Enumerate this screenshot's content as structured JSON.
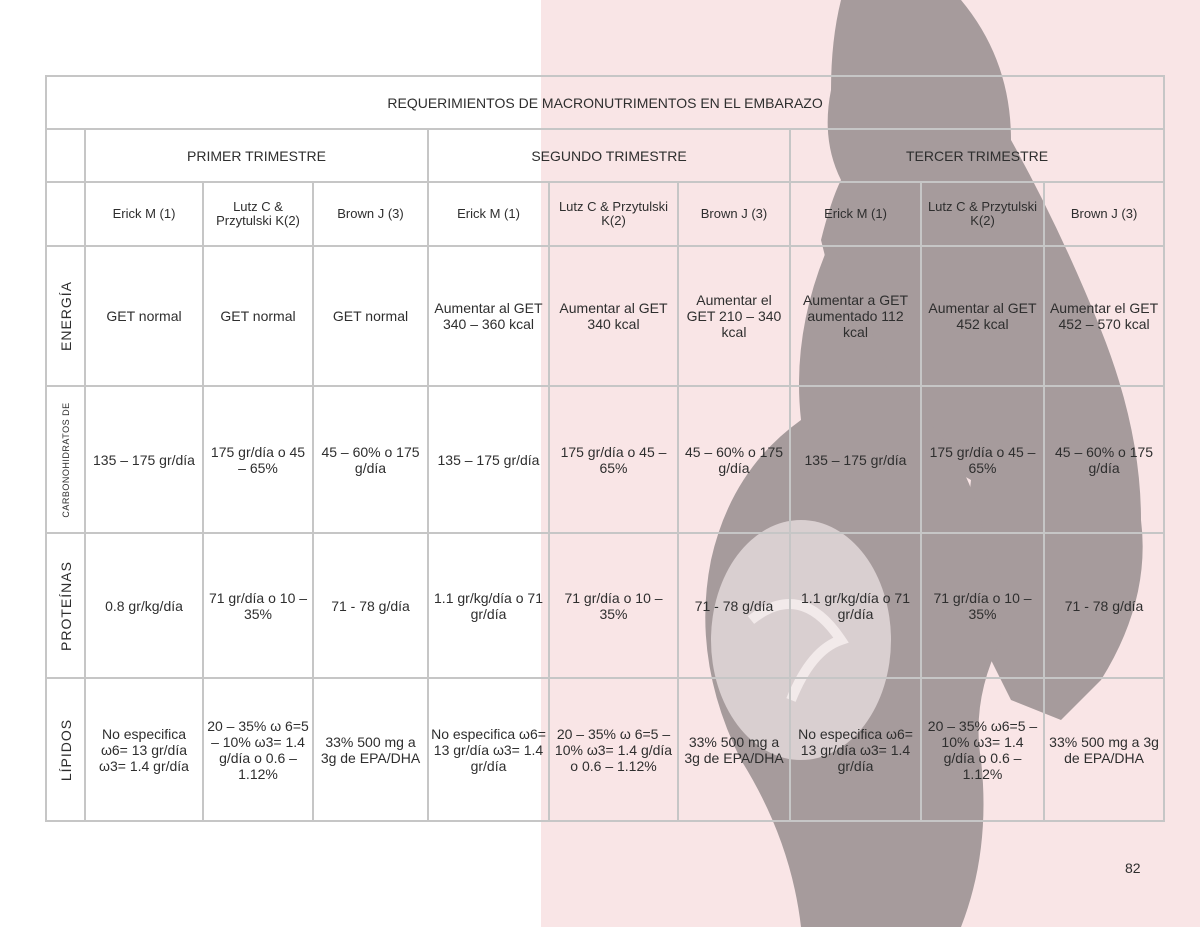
{
  "title": "REQUERIMIENTOS DE MACRONUTRIMENTOS EN EL EMBARAZO",
  "trimesters": [
    "PRIMER TRIMESTRE",
    "SEGUNDO TRIMESTRE",
    "TERCER TRIMESTRE"
  ],
  "authors": [
    "Erick M (1)",
    "Lutz C & Przytulski K(2)",
    "Brown  J (3)",
    "Erick M (1)",
    "Lutz C & Przytulski K(2)",
    "Brown  J (3)",
    "Erick M (1)",
    "Lutz C & Przytulski K(2)",
    "Brown  J (3)"
  ],
  "rows": [
    {
      "label": "ENERGÍA",
      "cells": [
        "GET normal",
        "GET normal",
        "GET normal",
        "Aumentar al GET 340 – 360 kcal",
        "Aumentar al GET 340 kcal",
        "Aumentar el GET 210 – 340 kcal",
        "Aumentar a GET aumentado 112 kcal",
        "Aumentar al GET 452 kcal",
        "Aumentar el GET 452 – 570 kcal"
      ]
    },
    {
      "label": "CARBONOHIDRATOS DE",
      "cells": [
        "135 – 175 gr/día",
        "175 gr/día o 45 – 65%",
        "45 – 60% o 175 g/día",
        "135 – 175 gr/día",
        "175 gr/día o 45 – 65%",
        "45 – 60% o 175 g/día",
        "135 – 175 gr/día",
        "175 gr/día o 45 – 65%",
        "45 – 60% o 175 g/día"
      ]
    },
    {
      "label": "PROTEÍNAS",
      "cells": [
        "0.8 gr/kg/día",
        "71 gr/día o 10 – 35%",
        "71  - 78 g/día",
        "1.1 gr/kg/día o 71 gr/día",
        "71 gr/día o 10 – 35%",
        "71  - 78 g/día",
        "1.1 gr/kg/día o 71 gr/día",
        "71 gr/día o 10 – 35%",
        "71  - 78 g/día"
      ]
    },
    {
      "label": "LÍPIDOS",
      "cells": [
        "No especifica ω6= 13 gr/día ω3= 1.4 gr/día",
        "20 – 35% ω 6=5 – 10% ω3= 1.4 g/día o 0.6 – 1.12%",
        "33% 500 mg a 3g de EPA/DHA",
        "No especifica ω6= 13 gr/día ω3= 1.4 gr/día",
        "20 – 35% ω 6=5 – 10% ω3= 1.4 g/día o 0.6 – 1.12%",
        "33% 500 mg a 3g de EPA/DHA",
        "No especifica ω6= 13 gr/día ω3= 1.4 gr/día",
        "20 – 35% ω6=5 – 10% ω3= 1.4 g/día o 0.6 – 1.12%",
        "33% 500 mg a 3g de EPA/DHA"
      ]
    }
  ],
  "page_number": "82",
  "colors": {
    "background_right": "#f9e5e6",
    "silhouette": "#a69b9c",
    "grid": "#c6c6c6"
  }
}
